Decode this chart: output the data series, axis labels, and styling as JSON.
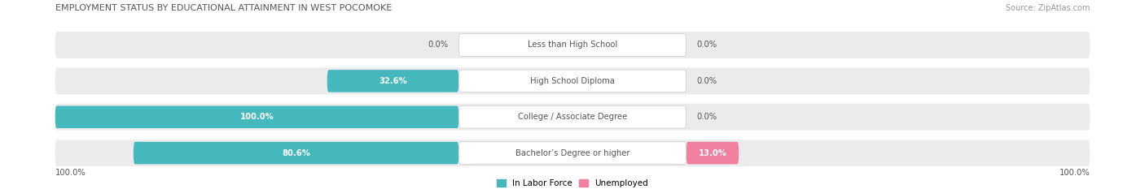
{
  "title": "EMPLOYMENT STATUS BY EDUCATIONAL ATTAINMENT IN WEST POCOMOKE",
  "source": "Source: ZipAtlas.com",
  "categories": [
    "Less than High School",
    "High School Diploma",
    "College / Associate Degree",
    "Bachelor’s Degree or higher"
  ],
  "labor_force": [
    0.0,
    32.6,
    100.0,
    80.6
  ],
  "unemployed": [
    0.0,
    0.0,
    0.0,
    13.0
  ],
  "teal_color": "#45b8be",
  "pink_color": "#f07fa0",
  "row_bg_color": "#ebebeb",
  "label_text_color": "#555555",
  "title_color": "#555555",
  "source_color": "#999999",
  "legend_teal_label": "In Labor Force",
  "legend_pink_label": "Unemployed",
  "x_left_label": "100.0%",
  "x_right_label": "100.0%",
  "max_lf": 100.0,
  "max_unemp": 100.0,
  "figsize": [
    14.06,
    2.33
  ],
  "dpi": 100
}
